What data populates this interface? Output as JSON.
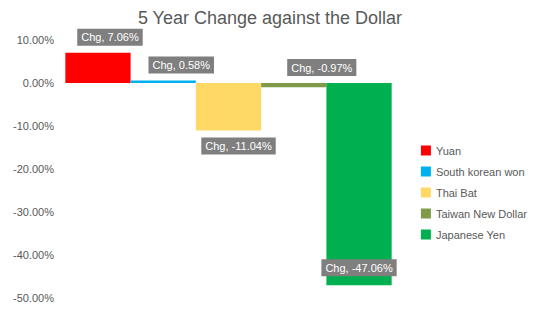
{
  "chart_data": {
    "type": "bar",
    "title": "5 Year Change against the Dollar",
    "categories": [
      null
    ],
    "series": [
      {
        "name": "Yuan",
        "color": "#ff0000",
        "values": [
          7.06
        ],
        "value_labels": [
          "Chg, 7.06%"
        ]
      },
      {
        "name": "South korean won",
        "color": "#00b0f0",
        "values": [
          0.58
        ],
        "value_labels": [
          "Chg, 0.58%"
        ]
      },
      {
        "name": "Thai Bat",
        "color": "#ffd966",
        "values": [
          -11.04
        ],
        "value_labels": [
          "Chg, -11.04%"
        ]
      },
      {
        "name": "Taiwan New Dollar",
        "color": "#7f9a48",
        "values": [
          -0.97
        ],
        "value_labels": [
          "Chg, -0.97%"
        ]
      },
      {
        "name": "Japanese Yen",
        "color": "#00b050",
        "values": [
          -47.06
        ],
        "value_labels": [
          "Chg, -47.06%"
        ]
      }
    ],
    "ylim": [
      -50,
      10
    ],
    "yticks": [
      {
        "value": -50,
        "label": "-50.00%"
      },
      {
        "value": -40,
        "label": "-40.00%"
      },
      {
        "value": -30,
        "label": "-30.00%"
      },
      {
        "value": -20,
        "label": "-20.00%"
      },
      {
        "value": -10,
        "label": "-10.00%"
      },
      {
        "value": 0,
        "label": "0.00%"
      },
      {
        "value": 10,
        "label": "10.00%"
      }
    ],
    "grid": false,
    "legend": "right",
    "data_labels": true,
    "tick_labels": "y"
  }
}
